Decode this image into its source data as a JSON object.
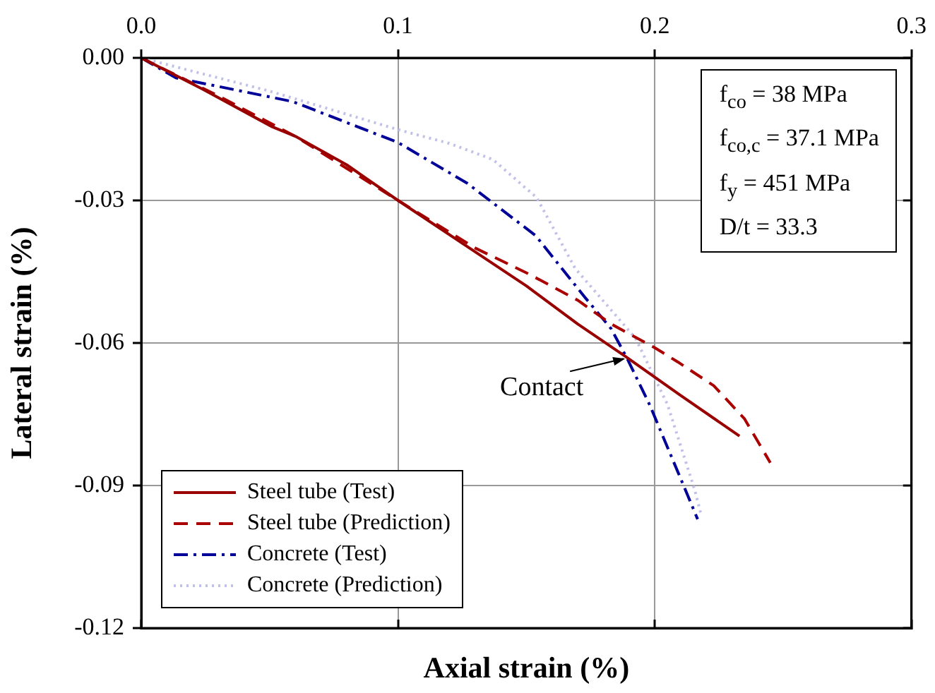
{
  "chart_data": {
    "type": "line",
    "xlabel": "Axial strain (%)",
    "ylabel": "Lateral strain (%)",
    "xlim": [
      0,
      0.3
    ],
    "xticks": [
      {
        "value": 0,
        "label": "0.0"
      },
      0.1,
      0.2,
      0.3
    ],
    "ylim": [
      -0.12,
      0
    ],
    "yticks": [
      {
        "value": -0.12,
        "label": "-0.12"
      },
      {
        "value": -0.09,
        "label": "-0.09"
      },
      {
        "value": -0.06,
        "label": "-0.06"
      },
      {
        "value": -0.03,
        "label": "-0.03"
      },
      {
        "value": 0,
        "label": "0.00"
      }
    ],
    "grid": true,
    "legend": "bottom left",
    "marker": "none",
    "annotations": [
      {
        "text": "Contact",
        "x": 0.189,
        "y": -0.063
      },
      "f$_{co}$ = 38 MPa",
      "f$_{co,c}$ = 37.1 MPa",
      "f$_{y}$ = 451 MPa",
      "D/t = 33.3"
    ],
    "series": [
      {
        "name": "Steel tube (Test)",
        "color": "#990000",
        "line_style": "solid",
        "x": [
          0,
          0.024,
          0.051,
          0.06,
          0.08,
          0.1,
          0.125,
          0.15,
          0.17,
          0.189,
          0.21,
          0.233
        ],
        "values": [
          0,
          -0.0066,
          -0.0145,
          -0.0165,
          -0.0225,
          -0.03,
          -0.039,
          -0.048,
          -0.056,
          -0.063,
          -0.071,
          -0.0796
        ]
      },
      {
        "name": "Steel tube (Prediction)",
        "color": "#aa0000",
        "line_style": "dashed",
        "x": [
          0,
          0.03,
          0.06,
          0.1,
          0.13,
          0.151,
          0.17,
          0.183,
          0.2,
          0.209,
          0.223,
          0.235,
          0.245
        ],
        "values": [
          0,
          -0.008,
          -0.0165,
          -0.03,
          -0.04,
          -0.0455,
          -0.051,
          -0.056,
          -0.061,
          -0.064,
          -0.069,
          -0.076,
          -0.0852
        ]
      },
      {
        "name": "Concrete (Test)",
        "color": "#000099",
        "line_style": "dashdot",
        "x": [
          0,
          0.0135,
          0.059,
          0.1,
          0.127,
          0.1536,
          0.1725,
          0.183,
          0.189,
          0.198,
          0.212,
          0.2167
        ],
        "values": [
          0,
          -0.0042,
          -0.0092,
          -0.0178,
          -0.0264,
          -0.0374,
          -0.0502,
          -0.057,
          -0.063,
          -0.073,
          -0.091,
          -0.0971
        ]
      },
      {
        "name": "Concrete (Prediction)",
        "color": "#c0c0e8",
        "line_style": "dotted",
        "x": [
          0,
          0.05,
          0.1,
          0.12,
          0.137,
          0.154,
          0.169,
          0.1925,
          0.205,
          0.2156,
          0.218
        ],
        "values": [
          0,
          -0.007,
          -0.0151,
          -0.018,
          -0.0214,
          -0.0294,
          -0.0443,
          -0.059,
          -0.073,
          -0.091,
          -0.096
        ]
      }
    ]
  }
}
